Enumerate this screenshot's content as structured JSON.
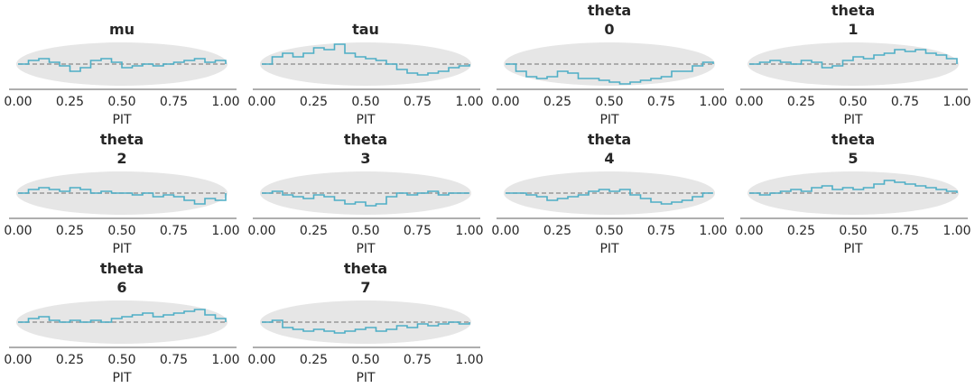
{
  "colors": {
    "band": "#e6e6e6",
    "ecdf_line": "#4eaec5",
    "reference_line": "#999999",
    "axis": "#262626"
  },
  "chart_data": {
    "type": "line",
    "xlim": [
      0,
      1
    ],
    "x_ticks": [
      "0.00",
      "0.25",
      "0.50",
      "0.75",
      "1.00"
    ],
    "xlabel": "PIT",
    "panels": [
      {
        "title_lines": [
          "mu"
        ],
        "x": [
          0,
          0.05,
          0.1,
          0.15,
          0.2,
          0.25,
          0.3,
          0.35,
          0.4,
          0.45,
          0.5,
          0.55,
          0.6,
          0.65,
          0.7,
          0.75,
          0.8,
          0.85,
          0.9,
          0.95,
          1
        ],
        "y": [
          0,
          0.01,
          0.015,
          0.005,
          -0.005,
          -0.02,
          -0.01,
          0.01,
          0.015,
          0.005,
          -0.01,
          -0.005,
          0.0,
          -0.005,
          0.0,
          0.005,
          0.01,
          0.015,
          0.005,
          0.01,
          0
        ]
      },
      {
        "title_lines": [
          "tau"
        ],
        "x": [
          0,
          0.05,
          0.1,
          0.15,
          0.2,
          0.25,
          0.3,
          0.35,
          0.4,
          0.45,
          0.5,
          0.55,
          0.6,
          0.65,
          0.7,
          0.75,
          0.8,
          0.85,
          0.9,
          0.95,
          1
        ],
        "y": [
          0,
          0.02,
          0.03,
          0.02,
          0.03,
          0.045,
          0.04,
          0.055,
          0.03,
          0.02,
          0.015,
          0.01,
          0.0,
          -0.015,
          -0.025,
          -0.03,
          -0.025,
          -0.02,
          -0.01,
          -0.005,
          0
        ]
      },
      {
        "title_lines": [
          "theta",
          "0"
        ],
        "x": [
          0,
          0.05,
          0.1,
          0.15,
          0.2,
          0.25,
          0.3,
          0.35,
          0.4,
          0.45,
          0.5,
          0.55,
          0.6,
          0.65,
          0.7,
          0.75,
          0.8,
          0.85,
          0.9,
          0.95,
          1
        ],
        "y": [
          0,
          -0.02,
          -0.035,
          -0.04,
          -0.035,
          -0.02,
          -0.025,
          -0.04,
          -0.04,
          -0.045,
          -0.05,
          -0.055,
          -0.05,
          -0.045,
          -0.04,
          -0.035,
          -0.02,
          -0.02,
          -0.005,
          0.005,
          0
        ]
      },
      {
        "title_lines": [
          "theta",
          "1"
        ],
        "x": [
          0,
          0.05,
          0.1,
          0.15,
          0.2,
          0.25,
          0.3,
          0.35,
          0.4,
          0.45,
          0.5,
          0.55,
          0.6,
          0.65,
          0.7,
          0.75,
          0.8,
          0.85,
          0.9,
          0.95,
          1
        ],
        "y": [
          0,
          0.005,
          0.01,
          0.005,
          0.0,
          0.01,
          0.005,
          -0.01,
          -0.005,
          0.01,
          0.02,
          0.015,
          0.025,
          0.03,
          0.04,
          0.035,
          0.04,
          0.03,
          0.025,
          0.015,
          0
        ]
      },
      {
        "title_lines": [
          "theta",
          "2"
        ],
        "x": [
          0,
          0.05,
          0.1,
          0.15,
          0.2,
          0.25,
          0.3,
          0.35,
          0.4,
          0.45,
          0.5,
          0.55,
          0.6,
          0.65,
          0.7,
          0.75,
          0.8,
          0.85,
          0.9,
          0.95,
          1
        ],
        "y": [
          0,
          0.01,
          0.015,
          0.01,
          0.005,
          0.015,
          0.01,
          0.0,
          0.005,
          0.0,
          0.0,
          -0.005,
          0.0,
          -0.01,
          -0.005,
          -0.01,
          -0.02,
          -0.03,
          -0.015,
          -0.02,
          0
        ]
      },
      {
        "title_lines": [
          "theta",
          "3"
        ],
        "x": [
          0,
          0.05,
          0.1,
          0.15,
          0.2,
          0.25,
          0.3,
          0.35,
          0.4,
          0.45,
          0.5,
          0.55,
          0.6,
          0.65,
          0.7,
          0.75,
          0.8,
          0.85,
          0.9,
          0.95,
          1
        ],
        "y": [
          0,
          0.005,
          -0.005,
          -0.01,
          -0.015,
          -0.005,
          -0.01,
          -0.02,
          -0.03,
          -0.025,
          -0.035,
          -0.03,
          -0.01,
          0.0,
          -0.005,
          0.0,
          0.005,
          -0.005,
          0.0,
          0.0,
          0
        ]
      },
      {
        "title_lines": [
          "theta",
          "4"
        ],
        "x": [
          0,
          0.05,
          0.1,
          0.15,
          0.2,
          0.25,
          0.3,
          0.35,
          0.4,
          0.45,
          0.5,
          0.55,
          0.6,
          0.65,
          0.7,
          0.75,
          0.8,
          0.85,
          0.9,
          0.95,
          1
        ],
        "y": [
          0,
          0.0,
          -0.005,
          -0.01,
          -0.02,
          -0.015,
          -0.01,
          -0.005,
          0.005,
          0.01,
          0.005,
          0.01,
          -0.005,
          -0.015,
          -0.025,
          -0.03,
          -0.025,
          -0.02,
          -0.01,
          0.0,
          0
        ]
      },
      {
        "title_lines": [
          "theta",
          "5"
        ],
        "x": [
          0,
          0.05,
          0.1,
          0.15,
          0.2,
          0.25,
          0.3,
          0.35,
          0.4,
          0.45,
          0.5,
          0.55,
          0.6,
          0.65,
          0.7,
          0.75,
          0.8,
          0.85,
          0.9,
          0.95,
          1
        ],
        "y": [
          0,
          -0.005,
          0.0,
          0.005,
          0.01,
          0.005,
          0.015,
          0.02,
          0.01,
          0.015,
          0.01,
          0.015,
          0.025,
          0.035,
          0.03,
          0.025,
          0.02,
          0.015,
          0.01,
          0.005,
          0
        ]
      },
      {
        "title_lines": [
          "theta",
          "6"
        ],
        "x": [
          0,
          0.05,
          0.1,
          0.15,
          0.2,
          0.25,
          0.3,
          0.35,
          0.4,
          0.45,
          0.5,
          0.55,
          0.6,
          0.65,
          0.7,
          0.75,
          0.8,
          0.85,
          0.9,
          0.95,
          1
        ],
        "y": [
          0,
          0.01,
          0.015,
          0.005,
          0.0,
          0.005,
          0.0,
          0.005,
          0.0,
          0.01,
          0.015,
          0.02,
          0.025,
          0.015,
          0.02,
          0.025,
          0.03,
          0.035,
          0.02,
          0.01,
          0
        ]
      },
      {
        "title_lines": [
          "theta",
          "7"
        ],
        "x": [
          0,
          0.05,
          0.1,
          0.15,
          0.2,
          0.25,
          0.3,
          0.35,
          0.4,
          0.45,
          0.5,
          0.55,
          0.6,
          0.65,
          0.7,
          0.75,
          0.8,
          0.85,
          0.9,
          0.95,
          1
        ],
        "y": [
          0,
          0.005,
          -0.015,
          -0.02,
          -0.025,
          -0.02,
          -0.025,
          -0.03,
          -0.025,
          -0.02,
          -0.015,
          -0.025,
          -0.02,
          -0.01,
          -0.015,
          -0.005,
          -0.01,
          -0.005,
          0.0,
          -0.005,
          0
        ]
      }
    ]
  }
}
